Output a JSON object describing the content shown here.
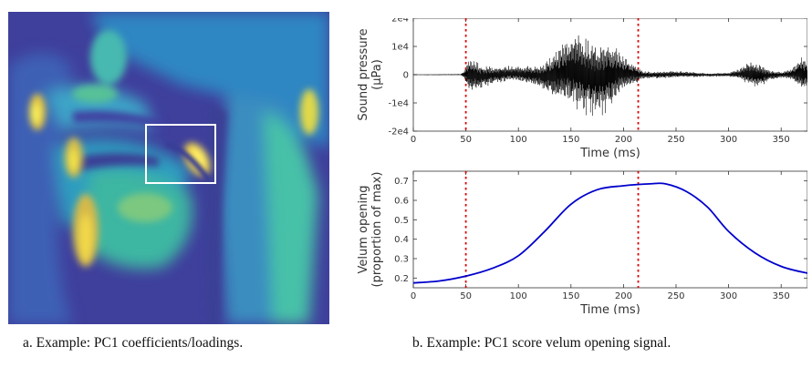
{
  "captions": {
    "a": "a. Example: PC1 coefficients/loadings.",
    "b": "b. Example: PC1 score velum opening signal."
  },
  "colors": {
    "waveform": "#000000",
    "velum_line": "#0000cc",
    "marker": "#dd0000",
    "roi_box": "#ffffff",
    "mri_low": "#3b3f9a",
    "mri_mid": "#21b0a0",
    "mri_high": "#f2e34a"
  },
  "chart_data": [
    {
      "type": "line",
      "panel": "top",
      "ylabel_lines": [
        "Sound pressure",
        "(µPa)"
      ],
      "xlabel": "Time (ms)",
      "xlim": [
        0,
        375
      ],
      "ylim": [
        -20000,
        20000
      ],
      "xticks": [
        0,
        50,
        100,
        150,
        200,
        250,
        300,
        350
      ],
      "yticks": [
        -20000,
        -10000,
        0,
        10000,
        20000
      ],
      "ytick_labels": [
        "-2e4",
        "-1e4",
        "0",
        "1e4",
        "2e4"
      ],
      "markers_x": [
        50,
        214
      ],
      "envelope": [
        {
          "t": 0,
          "a": 150
        },
        {
          "t": 45,
          "a": 250
        },
        {
          "t": 49,
          "a": 2000
        },
        {
          "t": 53,
          "a": 7500
        },
        {
          "t": 60,
          "a": 6000
        },
        {
          "t": 75,
          "a": 3500
        },
        {
          "t": 100,
          "a": 3000
        },
        {
          "t": 120,
          "a": 4500
        },
        {
          "t": 140,
          "a": 11000
        },
        {
          "t": 155,
          "a": 15500
        },
        {
          "t": 170,
          "a": 16000
        },
        {
          "t": 185,
          "a": 14000
        },
        {
          "t": 200,
          "a": 7000
        },
        {
          "t": 213,
          "a": 3500
        },
        {
          "t": 218,
          "a": 1500
        },
        {
          "t": 250,
          "a": 1400
        },
        {
          "t": 280,
          "a": 700
        },
        {
          "t": 300,
          "a": 800
        },
        {
          "t": 310,
          "a": 2000
        },
        {
          "t": 320,
          "a": 5000
        },
        {
          "t": 330,
          "a": 4500
        },
        {
          "t": 340,
          "a": 2000
        },
        {
          "t": 352,
          "a": 1200
        },
        {
          "t": 360,
          "a": 2500
        },
        {
          "t": 370,
          "a": 7500
        },
        {
          "t": 375,
          "a": 5000
        }
      ]
    },
    {
      "type": "line",
      "panel": "bottom",
      "ylabel_lines": [
        "Velum opening",
        "(proportion of max)"
      ],
      "xlabel": "Time (ms)",
      "xlim": [
        0,
        375
      ],
      "ylim": [
        0.15,
        0.75
      ],
      "xticks": [
        0,
        50,
        100,
        150,
        200,
        250,
        300,
        350
      ],
      "yticks": [
        0.2,
        0.3,
        0.4,
        0.5,
        0.6,
        0.7
      ],
      "ytick_labels": [
        "0.2",
        "0.3",
        "0.4",
        "0.5",
        "0.6",
        "0.7"
      ],
      "markers_x": [
        50,
        214
      ],
      "series": [
        {
          "x": [
            0,
            25,
            50,
            75,
            100,
            125,
            150,
            175,
            200,
            225,
            240,
            260,
            280,
            300,
            325,
            350,
            375
          ],
          "values": [
            0.175,
            0.185,
            0.21,
            0.25,
            0.315,
            0.44,
            0.58,
            0.655,
            0.675,
            0.685,
            0.685,
            0.645,
            0.565,
            0.44,
            0.33,
            0.26,
            0.225
          ]
        }
      ]
    }
  ]
}
